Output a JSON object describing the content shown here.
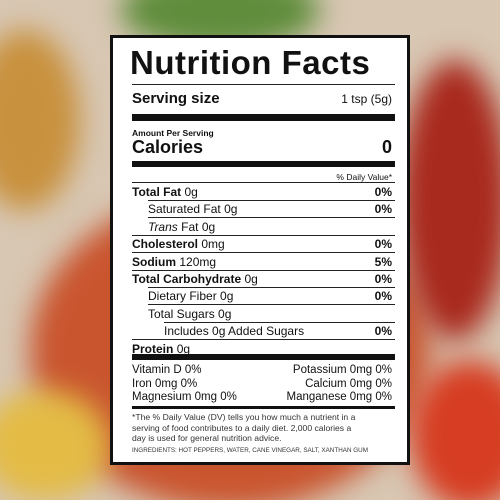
{
  "title": "Nutrition Facts",
  "serving": {
    "label": "Serving size",
    "value": "1 tsp (5g)"
  },
  "amount_per_serving": "Amount Per Serving",
  "calories": {
    "label": "Calories",
    "value": "0"
  },
  "daily_value_header": "% Daily Value*",
  "nutrients": [
    {
      "name": "Total Fat",
      "amount": "0g",
      "dv": "0%"
    },
    {
      "name": "Saturated Fat",
      "amount": "0g",
      "dv": "0%"
    },
    {
      "name_italic": "Trans",
      "name": "Fat",
      "amount": "0g"
    },
    {
      "name": "Cholesterol",
      "amount": "0mg",
      "dv": "0%"
    },
    {
      "name": "Sodium",
      "amount": "120mg",
      "dv": "5%"
    },
    {
      "name": "Total Carbohydrate",
      "amount": "0g",
      "dv": "0%"
    },
    {
      "name": "Dietary Fiber",
      "amount": "0g",
      "dv": "0%"
    },
    {
      "name": "Total Sugars",
      "amount": "0g"
    },
    {
      "name": "Includes 0g Added Sugars",
      "dv": "0%"
    },
    {
      "name": "Protein",
      "amount": "0g"
    }
  ],
  "vitamins": [
    {
      "left": "Vitamin D 0%",
      "right": "Potassium 0mg 0%"
    },
    {
      "left": "Iron 0mg 0%",
      "right": "Calcium 0mg 0%"
    },
    {
      "left": "Magnesium 0mg 0%",
      "right": "Manganese 0mg 0%"
    }
  ],
  "footnote": [
    "*The % Daily Value (DV) tells you how much a nutrient in a",
    "serving of food contributes to a daily diet. 2,000 calories a",
    "day is used for general nutrition advice."
  ],
  "ingredients": "INGREDIENTS: HOT PEPPERS, WATER, CANE VINEGAR, SALT, XANTHAN GUM"
}
